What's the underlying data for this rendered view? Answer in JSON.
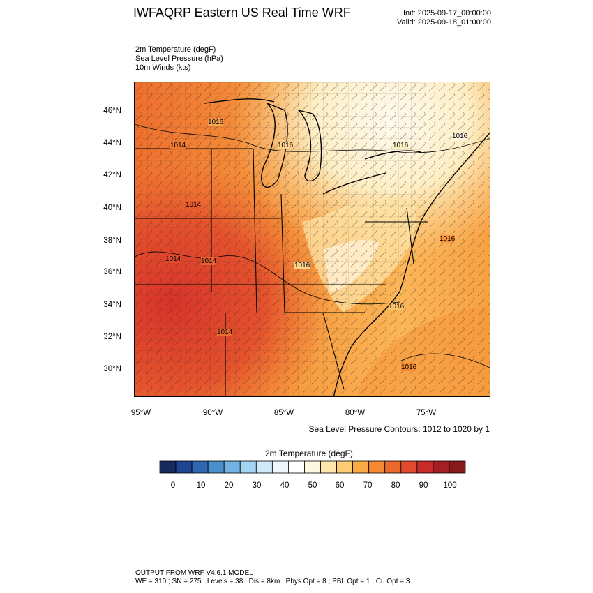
{
  "title": "IWFAQRP Eastern US Real Time WRF",
  "init": "Init: 2025-09-17_00:00:00",
  "valid": "Valid: 2025-09-18_01:00:00",
  "fields": [
    "2m Temperature   (degF)",
    "Sea Level Pressure   (hPa)",
    "10m Winds   (kts)"
  ],
  "map": {
    "lat_labels": [
      "46°N",
      "44°N",
      "42°N",
      "40°N",
      "38°N",
      "36°N",
      "34°N",
      "32°N",
      "30°N"
    ],
    "lon_labels": [
      "95°W",
      "90°W",
      "85°W",
      "80°W",
      "75°W"
    ],
    "pressure_labels": [
      "1016",
      "1014",
      "1016",
      "1016",
      "1016",
      "1014",
      "1014",
      "1014",
      "1016",
      "1016",
      "1016",
      "1014",
      "1016"
    ]
  },
  "slp_note": "Sea Level Pressure Contours: 1012 to 1020 by 1",
  "colorbar": {
    "title": "2m Temperature  (degF)",
    "labels": [
      "0",
      "10",
      "20",
      "30",
      "40",
      "50",
      "60",
      "70",
      "80",
      "90",
      "100"
    ],
    "colors": [
      "#172a5d",
      "#1e4591",
      "#2f67b1",
      "#4a8fcc",
      "#71b2e3",
      "#a4d4f4",
      "#cfe9f8",
      "#eef7fc",
      "#ffffff",
      "#fdf7df",
      "#fde7ad",
      "#fdcb72",
      "#fbaa45",
      "#f58a33",
      "#ec6a2e",
      "#e24a2d",
      "#c92a2a",
      "#a51e24",
      "#861a1a"
    ]
  },
  "footer": [
    "OUTPUT FROM WRF V4.6.1 MODEL",
    "WE = 310 ; SN = 275 ; Levels = 38 ; Dis = 8km ; Phys Opt = 8 ; PBL Opt = 1 ; Cu Opt = 3"
  ]
}
